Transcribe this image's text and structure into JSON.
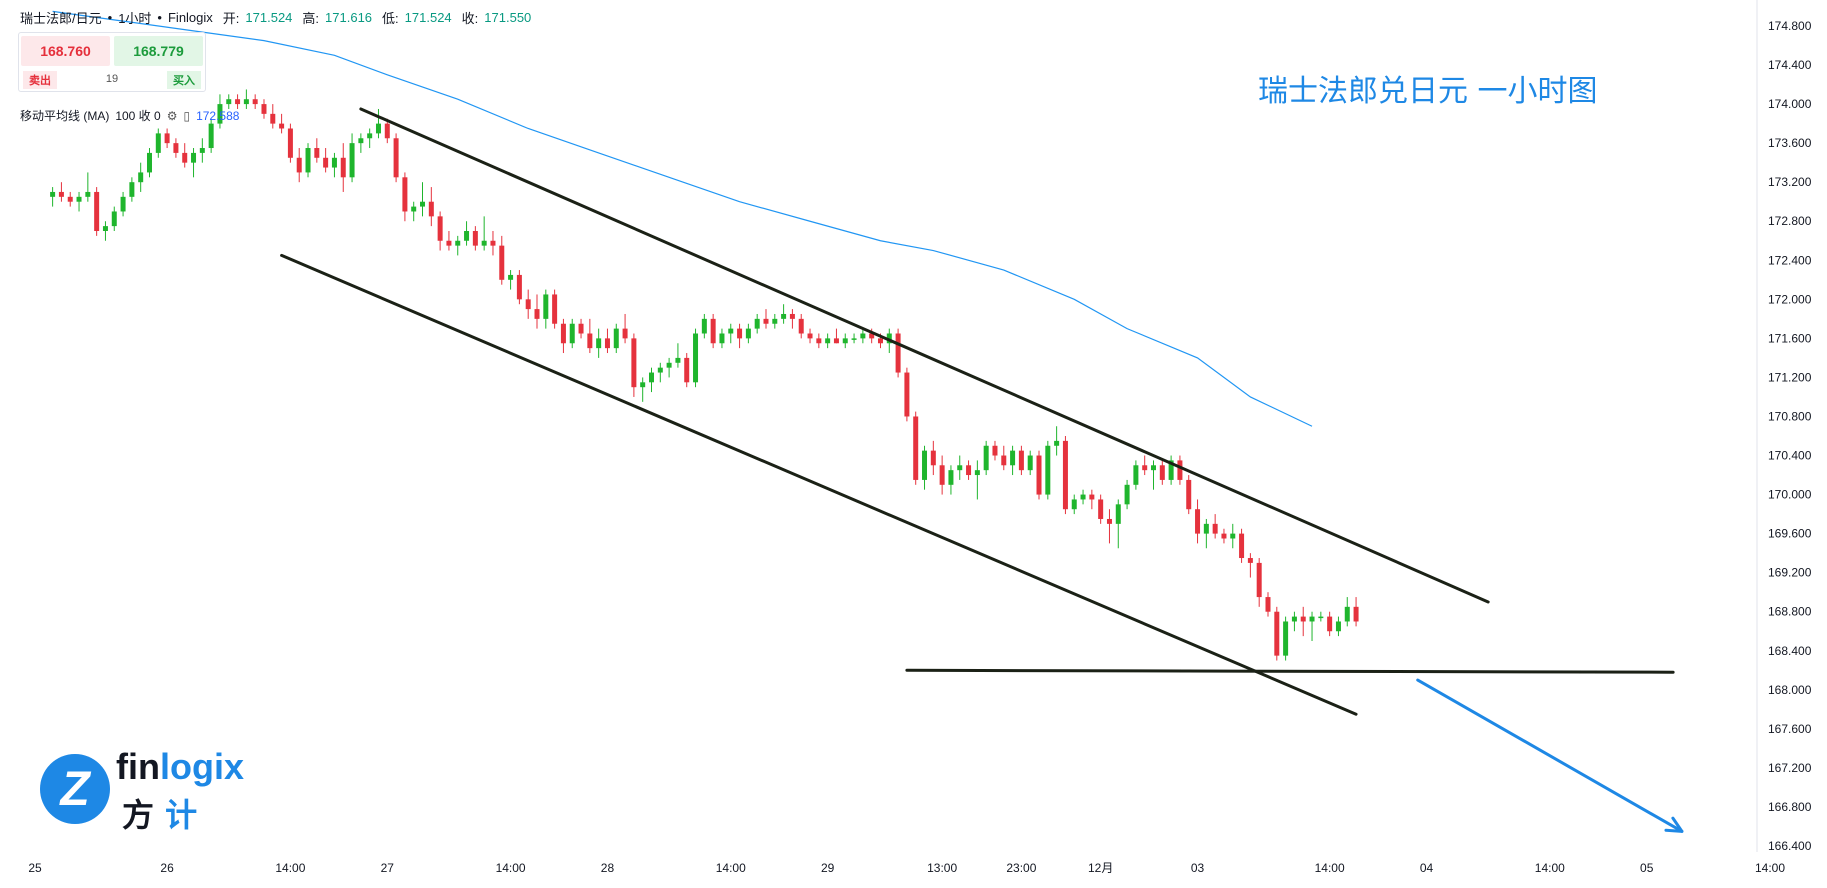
{
  "header": {
    "symbol": "瑞士法郎/日元",
    "timeframe": "1小时",
    "source": "Finlogix",
    "open_label": "开:",
    "open": "171.524",
    "high_label": "高:",
    "high": "171.616",
    "low_label": "低:",
    "low": "171.524",
    "close_label": "收:",
    "close": "171.550",
    "dot": "•"
  },
  "trade": {
    "sell_price": "168.760",
    "buy_price": "168.779",
    "spread": "19",
    "sell_label": "卖出",
    "buy_label": "买入"
  },
  "indicator": {
    "name": "移动平均线 (MA)",
    "params": "100 收 0",
    "value": "172.588"
  },
  "headline": "瑞士法郎兑日元 一小时图",
  "logo": {
    "word_a": "fin",
    "word_b": "logix",
    "cn_a": "方",
    "cn_b": "计",
    "mark": "Z"
  },
  "colors": {
    "up": "#1fb52d",
    "down": "#e5323d",
    "ma": "#2196f3",
    "trendline": "#1b2116",
    "arrow": "#1e88e5",
    "grid": "#f0f3fa"
  },
  "chart_data": {
    "type": "candlestick",
    "title": "",
    "ylim": [
      166.2,
      174.9
    ],
    "y_ticks": [
      174.8,
      174.4,
      174.0,
      173.6,
      173.2,
      172.8,
      172.4,
      172.0,
      171.6,
      171.2,
      170.8,
      170.4,
      170.0,
      169.6,
      169.2,
      168.8,
      168.4,
      168.0,
      167.6,
      167.2,
      166.8,
      166.4
    ],
    "x_ticks": [
      "25",
      "26",
      "14:00",
      "27",
      "14:00",
      "28",
      "14:00",
      "29",
      "13:00",
      "23:00",
      "12月",
      "03",
      "14:00",
      "04",
      "14:00",
      "05",
      "14:00"
    ],
    "x_tick_index": [
      -2,
      13,
      27,
      38,
      52,
      63,
      77,
      88,
      101,
      110,
      119,
      130,
      145,
      156,
      170,
      181,
      195
    ],
    "bar_count_axis": [
      0,
      195
    ],
    "candles": [
      [
        173.05,
        173.15,
        172.95,
        173.1
      ],
      [
        173.1,
        173.2,
        173.0,
        173.05
      ],
      [
        173.05,
        173.1,
        172.95,
        173.0
      ],
      [
        173.0,
        173.1,
        172.9,
        173.05
      ],
      [
        173.05,
        173.3,
        173.0,
        173.1
      ],
      [
        173.1,
        173.15,
        172.65,
        172.7
      ],
      [
        172.7,
        172.8,
        172.6,
        172.75
      ],
      [
        172.75,
        172.95,
        172.7,
        172.9
      ],
      [
        172.9,
        173.1,
        172.85,
        173.05
      ],
      [
        173.05,
        173.25,
        173.0,
        173.2
      ],
      [
        173.2,
        173.4,
        173.1,
        173.3
      ],
      [
        173.3,
        173.55,
        173.25,
        173.5
      ],
      [
        173.5,
        173.75,
        173.45,
        173.7
      ],
      [
        173.7,
        173.75,
        173.55,
        173.6
      ],
      [
        173.6,
        173.65,
        173.45,
        173.5
      ],
      [
        173.5,
        173.6,
        173.35,
        173.4
      ],
      [
        173.4,
        173.55,
        173.25,
        173.5
      ],
      [
        173.5,
        173.65,
        173.4,
        173.55
      ],
      [
        173.55,
        173.85,
        173.5,
        173.8
      ],
      [
        173.8,
        174.1,
        173.75,
        174.0
      ],
      [
        174.0,
        174.1,
        173.95,
        174.05
      ],
      [
        174.05,
        174.1,
        173.95,
        174.0
      ],
      [
        174.0,
        174.15,
        173.95,
        174.05
      ],
      [
        174.05,
        174.1,
        173.95,
        174.0
      ],
      [
        174.0,
        174.05,
        173.85,
        173.9
      ],
      [
        173.9,
        174.0,
        173.75,
        173.8
      ],
      [
        173.8,
        173.9,
        173.7,
        173.75
      ],
      [
        173.75,
        173.8,
        173.4,
        173.45
      ],
      [
        173.45,
        173.55,
        173.2,
        173.3
      ],
      [
        173.3,
        173.6,
        173.25,
        173.55
      ],
      [
        173.55,
        173.65,
        173.4,
        173.45
      ],
      [
        173.45,
        173.55,
        173.3,
        173.35
      ],
      [
        173.35,
        173.5,
        173.25,
        173.45
      ],
      [
        173.45,
        173.6,
        173.1,
        173.25
      ],
      [
        173.25,
        173.7,
        173.2,
        173.6
      ],
      [
        173.6,
        173.7,
        173.5,
        173.65
      ],
      [
        173.65,
        173.75,
        173.55,
        173.7
      ],
      [
        173.7,
        173.95,
        173.65,
        173.8
      ],
      [
        173.8,
        173.85,
        173.6,
        173.65
      ],
      [
        173.65,
        173.7,
        173.2,
        173.25
      ],
      [
        173.25,
        173.3,
        172.8,
        172.9
      ],
      [
        172.9,
        173.0,
        172.8,
        172.95
      ],
      [
        172.95,
        173.2,
        172.85,
        173.0
      ],
      [
        173.0,
        173.15,
        172.75,
        172.85
      ],
      [
        172.85,
        172.9,
        172.5,
        172.6
      ],
      [
        172.6,
        172.7,
        172.5,
        172.55
      ],
      [
        172.55,
        172.65,
        172.45,
        172.6
      ],
      [
        172.6,
        172.8,
        172.55,
        172.7
      ],
      [
        172.7,
        172.75,
        172.5,
        172.55
      ],
      [
        172.55,
        172.85,
        172.5,
        172.6
      ],
      [
        172.6,
        172.7,
        172.45,
        172.55
      ],
      [
        172.55,
        172.65,
        172.15,
        172.2
      ],
      [
        172.2,
        172.3,
        172.1,
        172.25
      ],
      [
        172.25,
        172.3,
        171.95,
        172.0
      ],
      [
        172.0,
        172.1,
        171.8,
        171.9
      ],
      [
        171.9,
        172.05,
        171.7,
        171.8
      ],
      [
        171.8,
        172.1,
        171.7,
        172.05
      ],
      [
        172.05,
        172.1,
        171.7,
        171.75
      ],
      [
        171.75,
        171.8,
        171.45,
        171.55
      ],
      [
        171.55,
        171.8,
        171.5,
        171.75
      ],
      [
        171.75,
        171.8,
        171.6,
        171.65
      ],
      [
        171.65,
        171.8,
        171.45,
        171.5
      ],
      [
        171.5,
        171.7,
        171.4,
        171.6
      ],
      [
        171.6,
        171.7,
        171.45,
        171.5
      ],
      [
        171.5,
        171.75,
        171.45,
        171.7
      ],
      [
        171.7,
        171.85,
        171.55,
        171.6
      ],
      [
        171.6,
        171.65,
        171.0,
        171.1
      ],
      [
        171.1,
        171.2,
        170.95,
        171.15
      ],
      [
        171.15,
        171.3,
        171.05,
        171.25
      ],
      [
        171.25,
        171.35,
        171.15,
        171.3
      ],
      [
        171.3,
        171.4,
        171.2,
        171.35
      ],
      [
        171.35,
        171.55,
        171.3,
        171.4
      ],
      [
        171.4,
        171.45,
        171.1,
        171.15
      ],
      [
        171.15,
        171.7,
        171.1,
        171.65
      ],
      [
        171.65,
        171.85,
        171.6,
        171.8
      ],
      [
        171.8,
        171.85,
        171.5,
        171.55
      ],
      [
        171.55,
        171.7,
        171.5,
        171.65
      ],
      [
        171.65,
        171.75,
        171.55,
        171.7
      ],
      [
        171.7,
        171.75,
        171.5,
        171.6
      ],
      [
        171.6,
        171.75,
        171.55,
        171.7
      ],
      [
        171.7,
        171.85,
        171.65,
        171.8
      ],
      [
        171.8,
        171.9,
        171.7,
        171.75
      ],
      [
        171.75,
        171.85,
        171.7,
        171.8
      ],
      [
        171.8,
        171.95,
        171.75,
        171.85
      ],
      [
        171.85,
        171.9,
        171.7,
        171.8
      ],
      [
        171.8,
        171.85,
        171.6,
        171.65
      ],
      [
        171.65,
        171.7,
        171.55,
        171.6
      ],
      [
        171.6,
        171.65,
        171.5,
        171.55
      ],
      [
        171.55,
        171.65,
        171.5,
        171.6
      ],
      [
        171.6,
        171.7,
        171.55,
        171.55
      ],
      [
        171.55,
        171.65,
        171.5,
        171.6
      ],
      [
        171.6,
        171.65,
        171.55,
        171.6
      ],
      [
        171.6,
        171.7,
        171.55,
        171.65
      ],
      [
        171.65,
        171.7,
        171.55,
        171.6
      ],
      [
        171.6,
        171.65,
        171.5,
        171.55
      ],
      [
        171.55,
        171.7,
        171.45,
        171.65
      ],
      [
        171.65,
        171.7,
        171.2,
        171.25
      ],
      [
        171.25,
        171.3,
        170.75,
        170.8
      ],
      [
        170.8,
        170.85,
        170.1,
        170.15
      ],
      [
        170.15,
        170.5,
        170.05,
        170.45
      ],
      [
        170.45,
        170.55,
        170.2,
        170.3
      ],
      [
        170.3,
        170.4,
        170.0,
        170.1
      ],
      [
        170.1,
        170.3,
        170.0,
        170.25
      ],
      [
        170.25,
        170.4,
        170.15,
        170.3
      ],
      [
        170.3,
        170.35,
        170.15,
        170.2
      ],
      [
        170.2,
        170.35,
        169.95,
        170.25
      ],
      [
        170.25,
        170.55,
        170.2,
        170.5
      ],
      [
        170.5,
        170.55,
        170.35,
        170.4
      ],
      [
        170.4,
        170.5,
        170.25,
        170.3
      ],
      [
        170.3,
        170.5,
        170.2,
        170.45
      ],
      [
        170.45,
        170.5,
        170.2,
        170.25
      ],
      [
        170.25,
        170.45,
        170.2,
        170.4
      ],
      [
        170.4,
        170.45,
        169.95,
        170.0
      ],
      [
        170.0,
        170.55,
        169.95,
        170.5
      ],
      [
        170.5,
        170.7,
        170.4,
        170.55
      ],
      [
        170.55,
        170.6,
        169.8,
        169.85
      ],
      [
        169.85,
        170.0,
        169.8,
        169.95
      ],
      [
        169.95,
        170.05,
        169.9,
        170.0
      ],
      [
        170.0,
        170.05,
        169.85,
        169.95
      ],
      [
        169.95,
        170.0,
        169.7,
        169.75
      ],
      [
        169.75,
        169.85,
        169.5,
        169.7
      ],
      [
        169.7,
        169.95,
        169.45,
        169.9
      ],
      [
        169.9,
        170.15,
        169.85,
        170.1
      ],
      [
        170.1,
        170.35,
        170.05,
        170.3
      ],
      [
        170.3,
        170.4,
        170.2,
        170.25
      ],
      [
        170.25,
        170.35,
        170.05,
        170.3
      ],
      [
        170.3,
        170.35,
        170.1,
        170.15
      ],
      [
        170.15,
        170.4,
        170.1,
        170.35
      ],
      [
        170.35,
        170.4,
        170.1,
        170.15
      ],
      [
        170.15,
        170.2,
        169.8,
        169.85
      ],
      [
        169.85,
        169.95,
        169.5,
        169.6
      ],
      [
        169.6,
        169.75,
        169.45,
        169.7
      ],
      [
        169.7,
        169.8,
        169.55,
        169.6
      ],
      [
        169.6,
        169.65,
        169.5,
        169.55
      ],
      [
        169.55,
        169.7,
        169.45,
        169.6
      ],
      [
        169.6,
        169.65,
        169.3,
        169.35
      ],
      [
        169.35,
        169.4,
        169.15,
        169.3
      ],
      [
        169.3,
        169.35,
        168.85,
        168.95
      ],
      [
        168.95,
        169.0,
        168.75,
        168.8
      ],
      [
        168.8,
        168.85,
        168.3,
        168.35
      ],
      [
        168.35,
        168.75,
        168.3,
        168.7
      ],
      [
        168.7,
        168.8,
        168.6,
        168.75
      ],
      [
        168.75,
        168.85,
        168.55,
        168.7
      ],
      [
        168.7,
        168.8,
        168.5,
        168.75
      ],
      [
        168.75,
        168.8,
        168.7,
        168.75
      ],
      [
        168.75,
        168.8,
        168.55,
        168.6
      ],
      [
        168.6,
        168.75,
        168.55,
        168.7
      ],
      [
        168.7,
        168.95,
        168.65,
        168.85
      ],
      [
        168.85,
        168.95,
        168.65,
        168.7
      ]
    ],
    "moving_average_100": [
      [
        0,
        174.95
      ],
      [
        8,
        174.85
      ],
      [
        16,
        174.75
      ],
      [
        24,
        174.65
      ],
      [
        32,
        174.5
      ],
      [
        38,
        174.3
      ],
      [
        46,
        174.05
      ],
      [
        54,
        173.75
      ],
      [
        62,
        173.5
      ],
      [
        70,
        173.25
      ],
      [
        78,
        173.0
      ],
      [
        86,
        172.8
      ],
      [
        94,
        172.6
      ],
      [
        100,
        172.5
      ],
      [
        108,
        172.3
      ],
      [
        116,
        172.0
      ],
      [
        122,
        171.7
      ],
      [
        130,
        171.4
      ],
      [
        136,
        171.0
      ],
      [
        143,
        170.7
      ]
    ],
    "lines": [
      {
        "from": [
          35,
          173.95
        ],
        "to": [
          163,
          168.9
        ]
      },
      {
        "from": [
          26,
          172.45
        ],
        "to": [
          148,
          167.75
        ]
      },
      {
        "from": [
          97,
          168.2
        ],
        "to": [
          184,
          168.18
        ]
      }
    ],
    "arrow": {
      "from": [
        155,
        168.1
      ],
      "to": [
        185,
        166.55
      ]
    }
  }
}
